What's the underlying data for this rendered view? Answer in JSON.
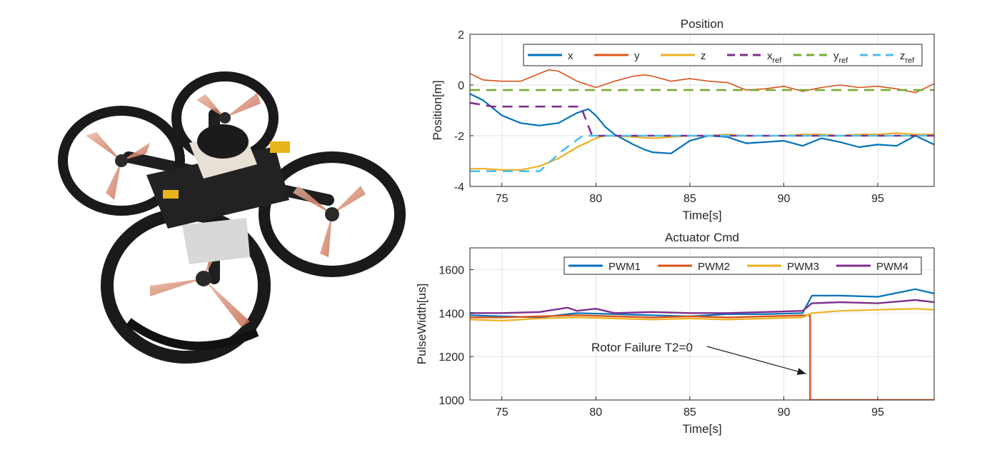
{
  "photo": {
    "icon": "quadrotor-drone-photo"
  },
  "charts": [
    {
      "type": "line",
      "title": "Position",
      "xlabel": "Time[s]",
      "ylabel": "Position[m]",
      "xlim": [
        73.3,
        98
      ],
      "ylim": [
        -4,
        2
      ],
      "xticks": [
        75,
        80,
        85,
        90,
        95
      ],
      "yticks": [
        -4,
        -2,
        0,
        2
      ],
      "grid": true,
      "legend_position": "top-right",
      "legend_orientation": "horizontal",
      "series": [
        {
          "name": "x",
          "color": "#0072BD",
          "style": "solid",
          "width": 2.2,
          "x": [
            73.3,
            74,
            75,
            76,
            77,
            78,
            79,
            79.6,
            80,
            80.5,
            81,
            82,
            82.6,
            83,
            84,
            85,
            86,
            87,
            88,
            89,
            90,
            91,
            92,
            93,
            94,
            95,
            96,
            97,
            98
          ],
          "y": [
            -0.35,
            -0.6,
            -1.2,
            -1.5,
            -1.6,
            -1.5,
            -1.1,
            -0.95,
            -1.2,
            -1.65,
            -1.95,
            -2.35,
            -2.55,
            -2.65,
            -2.7,
            -2.2,
            -2.0,
            -2.05,
            -2.3,
            -2.25,
            -2.2,
            -2.4,
            -2.1,
            -2.25,
            -2.45,
            -2.35,
            -2.4,
            -2.0,
            -2.35
          ]
        },
        {
          "name": "y",
          "color": "#D95319",
          "style": "solid",
          "width": 1.6,
          "x": [
            73.3,
            74,
            75,
            76,
            77,
            77.5,
            78,
            79,
            79.6,
            80,
            81,
            82,
            82.6,
            83,
            84,
            85,
            86,
            87,
            88,
            89,
            90,
            91,
            92,
            93,
            94,
            95,
            96,
            97,
            98
          ],
          "y": [
            0.45,
            0.2,
            0.15,
            0.15,
            0.45,
            0.6,
            0.55,
            0.15,
            0.0,
            -0.1,
            0.15,
            0.35,
            0.4,
            0.35,
            0.15,
            0.25,
            0.15,
            0.1,
            -0.2,
            -0.15,
            -0.05,
            -0.25,
            -0.1,
            0.0,
            -0.1,
            -0.05,
            -0.15,
            -0.3,
            0.05
          ]
        },
        {
          "name": "z",
          "color": "#EDB120",
          "style": "solid",
          "width": 2.2,
          "x": [
            73.3,
            74,
            75,
            76,
            77,
            78,
            79,
            80,
            80.5,
            81,
            82,
            83,
            84,
            85,
            86,
            87,
            88,
            89,
            90,
            91,
            92,
            93,
            94,
            95,
            96,
            97,
            98
          ],
          "y": [
            -3.3,
            -3.3,
            -3.35,
            -3.35,
            -3.2,
            -2.9,
            -2.45,
            -2.1,
            -2.0,
            -2.0,
            -2.05,
            -2.1,
            -2.05,
            -2.0,
            -2.0,
            -1.95,
            -2.0,
            -2.0,
            -2.0,
            -1.95,
            -1.95,
            -2.0,
            -1.95,
            -1.95,
            -1.9,
            -1.95,
            -1.95
          ]
        },
        {
          "name": "x_ref",
          "color": "#7E2F8E",
          "style": "dashed",
          "width": 2.6,
          "x": [
            73.3,
            74.5,
            79.2,
            79.8,
            98
          ],
          "y": [
            -0.7,
            -0.85,
            -0.85,
            -2.0,
            -2.0
          ]
        },
        {
          "name": "y_ref",
          "color": "#77AC30",
          "style": "dashed",
          "width": 2.6,
          "x": [
            73.3,
            98
          ],
          "y": [
            -0.2,
            -0.2
          ]
        },
        {
          "name": "z_ref",
          "color": "#4DBEEE",
          "style": "dashed",
          "width": 2.6,
          "x": [
            73.3,
            77,
            78.2,
            79.3,
            80,
            98
          ],
          "y": [
            -3.4,
            -3.4,
            -2.6,
            -2.0,
            -2.0,
            -2.0
          ]
        }
      ],
      "legend": [
        {
          "text": "x",
          "sub": ""
        },
        {
          "text": "y",
          "sub": ""
        },
        {
          "text": "z",
          "sub": ""
        },
        {
          "text": "x",
          "sub": "ref"
        },
        {
          "text": "y",
          "sub": "ref"
        },
        {
          "text": "z",
          "sub": "ref"
        }
      ]
    },
    {
      "type": "line",
      "title": "Actuator Cmd",
      "xlabel": "Time[s]",
      "ylabel": "PulseWidth[us]",
      "xlim": [
        73.3,
        98
      ],
      "ylim": [
        1000,
        1700
      ],
      "xticks": [
        75,
        80,
        85,
        90,
        95
      ],
      "yticks": [
        1000,
        1200,
        1400,
        1600
      ],
      "grid": true,
      "legend_position": "top-right",
      "legend_orientation": "horizontal",
      "series": [
        {
          "name": "PWM1",
          "color": "#0072BD",
          "style": "solid",
          "width": 2.2,
          "x": [
            73.3,
            75,
            77,
            79,
            81,
            83,
            85,
            87,
            89,
            91,
            91.5,
            93,
            95,
            97,
            98
          ],
          "y": [
            1390,
            1385,
            1380,
            1400,
            1395,
            1390,
            1385,
            1395,
            1395,
            1400,
            1480,
            1480,
            1475,
            1510,
            1490
          ]
        },
        {
          "name": "PWM2",
          "color": "#D95319",
          "style": "solid",
          "width": 2.4,
          "x": [
            73.3,
            75,
            77,
            79,
            81,
            83,
            85,
            87,
            89,
            91.4,
            91.4,
            98
          ],
          "y": [
            1380,
            1380,
            1385,
            1390,
            1385,
            1380,
            1385,
            1380,
            1385,
            1390,
            1000,
            1000
          ]
        },
        {
          "name": "PWM3",
          "color": "#EDB120",
          "style": "solid",
          "width": 2.2,
          "x": [
            73.3,
            75,
            77,
            79,
            81,
            83,
            85,
            87,
            89,
            91,
            91.5,
            93,
            95,
            97,
            98
          ],
          "y": [
            1370,
            1365,
            1375,
            1380,
            1375,
            1370,
            1375,
            1370,
            1375,
            1380,
            1400,
            1410,
            1415,
            1420,
            1415
          ]
        },
        {
          "name": "PWM4",
          "color": "#7E2F8E",
          "style": "solid",
          "width": 2.4,
          "x": [
            73.3,
            75,
            77,
            78.5,
            79,
            80,
            81,
            83,
            85,
            87,
            89,
            91,
            91.5,
            93,
            95,
            97,
            98
          ],
          "y": [
            1400,
            1400,
            1405,
            1425,
            1410,
            1420,
            1400,
            1405,
            1400,
            1400,
            1405,
            1410,
            1445,
            1450,
            1445,
            1460,
            1450
          ]
        }
      ],
      "legend": [
        {
          "text": "PWM1",
          "sub": ""
        },
        {
          "text": "PWM2",
          "sub": ""
        },
        {
          "text": "PWM3",
          "sub": ""
        },
        {
          "text": "PWM4",
          "sub": ""
        }
      ],
      "annotation": {
        "text": "Rotor Failure T2=0",
        "arrow_to": [
          91.3,
          1180
        ]
      }
    }
  ]
}
